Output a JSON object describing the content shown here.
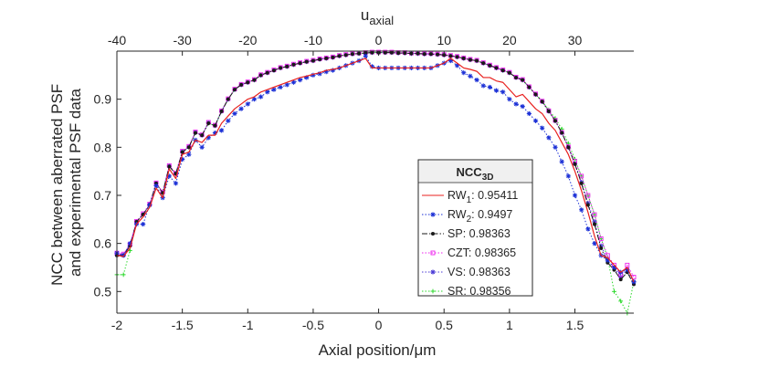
{
  "chart_data": {
    "type": "line",
    "ylabel_line1": "NCC between aberrated PSF",
    "ylabel_line2": "and experimental PSF data",
    "xlabel": "Axial position/μm",
    "top_xlabel_main": "u",
    "top_xlabel_sub": "axial",
    "xlim": [
      -2,
      1.95
    ],
    "ylim": [
      0.455,
      1.0
    ],
    "x_ticks": [
      -2,
      -1.5,
      -1,
      -0.5,
      0,
      0.5,
      1,
      1.5
    ],
    "x_tick_labels": [
      "-2",
      "-1.5",
      "-1",
      "-0.5",
      "0",
      "0.5",
      "1",
      "1.5"
    ],
    "top_x_ticks": [
      -40,
      -30,
      -20,
      -10,
      0,
      10,
      20,
      30
    ],
    "top_x_tick_labels": [
      "-40",
      "-30",
      "-20",
      "-10",
      "0",
      "10",
      "20",
      "30"
    ],
    "y_ticks": [
      0.5,
      0.6,
      0.7,
      0.8,
      0.9
    ],
    "y_tick_labels": [
      "0.5",
      "0.6",
      "0.7",
      "0.8",
      "0.9"
    ],
    "legend": {
      "title_main": "NCC",
      "title_sub": "3D",
      "placement": "center-right"
    },
    "series": [
      {
        "name": "RW1",
        "name_main": "RW",
        "name_sub": "1",
        "value_label": ": 0.95411",
        "color": "#e8211f",
        "style": "solid",
        "marker": "none",
        "x": [
          -2.0,
          -1.95,
          -1.9,
          -1.85,
          -1.8,
          -1.75,
          -1.7,
          -1.65,
          -1.6,
          -1.55,
          -1.5,
          -1.45,
          -1.4,
          -1.35,
          -1.3,
          -1.25,
          -1.2,
          -1.15,
          -1.1,
          -1.05,
          -1.0,
          -0.95,
          -0.9,
          -0.85,
          -0.8,
          -0.75,
          -0.7,
          -0.65,
          -0.6,
          -0.55,
          -0.5,
          -0.45,
          -0.4,
          -0.35,
          -0.3,
          -0.25,
          -0.2,
          -0.15,
          -0.1,
          -0.05,
          0.0,
          0.05,
          0.1,
          0.15,
          0.2,
          0.25,
          0.3,
          0.35,
          0.4,
          0.45,
          0.5,
          0.55,
          0.6,
          0.65,
          0.7,
          0.75,
          0.8,
          0.85,
          0.9,
          0.95,
          1.0,
          1.05,
          1.1,
          1.15,
          1.2,
          1.25,
          1.3,
          1.35,
          1.4,
          1.45,
          1.5,
          1.55,
          1.6,
          1.65,
          1.7,
          1.75,
          1.8,
          1.85,
          1.9,
          1.95
        ],
        "values": [
          0.575,
          0.573,
          0.59,
          0.64,
          0.655,
          0.675,
          0.715,
          0.695,
          0.755,
          0.735,
          0.785,
          0.79,
          0.815,
          0.81,
          0.825,
          0.825,
          0.85,
          0.865,
          0.88,
          0.89,
          0.9,
          0.905,
          0.915,
          0.92,
          0.925,
          0.93,
          0.935,
          0.94,
          0.945,
          0.948,
          0.952,
          0.955,
          0.96,
          0.962,
          0.965,
          0.97,
          0.975,
          0.98,
          0.985,
          0.965,
          0.965,
          0.965,
          0.965,
          0.965,
          0.965,
          0.965,
          0.965,
          0.965,
          0.965,
          0.97,
          0.975,
          0.985,
          0.975,
          0.965,
          0.962,
          0.958,
          0.945,
          0.945,
          0.938,
          0.935,
          0.92,
          0.905,
          0.91,
          0.895,
          0.88,
          0.87,
          0.85,
          0.835,
          0.81,
          0.785,
          0.75,
          0.71,
          0.665,
          0.615,
          0.575,
          0.57,
          0.555,
          0.54,
          0.55,
          0.52
        ]
      },
      {
        "name": "RW2",
        "name_main": "RW",
        "name_sub": "2",
        "value_label": ": 0.9497",
        "color": "#1a2fd6",
        "style": "dotted",
        "marker": "star",
        "x": [
          -2.0,
          -1.95,
          -1.9,
          -1.85,
          -1.8,
          -1.75,
          -1.7,
          -1.65,
          -1.6,
          -1.55,
          -1.5,
          -1.45,
          -1.4,
          -1.35,
          -1.3,
          -1.25,
          -1.2,
          -1.15,
          -1.1,
          -1.05,
          -1.0,
          -0.95,
          -0.9,
          -0.85,
          -0.8,
          -0.75,
          -0.7,
          -0.65,
          -0.6,
          -0.55,
          -0.5,
          -0.45,
          -0.4,
          -0.35,
          -0.3,
          -0.25,
          -0.2,
          -0.15,
          -0.1,
          -0.05,
          0.0,
          0.05,
          0.1,
          0.15,
          0.2,
          0.25,
          0.3,
          0.35,
          0.4,
          0.45,
          0.5,
          0.55,
          0.6,
          0.65,
          0.7,
          0.75,
          0.8,
          0.85,
          0.9,
          0.95,
          1.0,
          1.05,
          1.1,
          1.15,
          1.2,
          1.25,
          1.3,
          1.35,
          1.4,
          1.45,
          1.5,
          1.55,
          1.6,
          1.65,
          1.7,
          1.75,
          1.8,
          1.85,
          1.9,
          1.95
        ],
        "values": [
          0.58,
          0.575,
          0.6,
          0.64,
          0.64,
          0.68,
          0.72,
          0.695,
          0.74,
          0.725,
          0.775,
          0.785,
          0.815,
          0.8,
          0.82,
          0.83,
          0.835,
          0.855,
          0.87,
          0.88,
          0.89,
          0.9,
          0.905,
          0.915,
          0.92,
          0.925,
          0.93,
          0.935,
          0.94,
          0.945,
          0.95,
          0.953,
          0.957,
          0.96,
          0.965,
          0.97,
          0.975,
          0.98,
          0.99,
          0.968,
          0.965,
          0.965,
          0.965,
          0.965,
          0.965,
          0.965,
          0.965,
          0.965,
          0.965,
          0.97,
          0.975,
          0.98,
          0.97,
          0.955,
          0.948,
          0.94,
          0.928,
          0.925,
          0.918,
          0.915,
          0.9,
          0.89,
          0.885,
          0.87,
          0.855,
          0.84,
          0.82,
          0.8,
          0.77,
          0.74,
          0.7,
          0.67,
          0.63,
          0.6,
          0.575,
          0.565,
          0.55,
          0.54,
          0.545,
          0.52
        ]
      },
      {
        "name": "SP",
        "name_main": "SP",
        "name_sub": "",
        "value_label": ": 0.98363",
        "color": "#1a1a1a",
        "style": "dashdot",
        "marker": "dot",
        "x": [
          -2.0,
          -1.95,
          -1.9,
          -1.85,
          -1.8,
          -1.75,
          -1.7,
          -1.65,
          -1.6,
          -1.55,
          -1.5,
          -1.45,
          -1.4,
          -1.35,
          -1.3,
          -1.25,
          -1.2,
          -1.15,
          -1.1,
          -1.05,
          -1.0,
          -0.95,
          -0.9,
          -0.85,
          -0.8,
          -0.75,
          -0.7,
          -0.65,
          -0.6,
          -0.55,
          -0.5,
          -0.45,
          -0.4,
          -0.35,
          -0.3,
          -0.25,
          -0.2,
          -0.15,
          -0.1,
          -0.05,
          0.0,
          0.05,
          0.1,
          0.15,
          0.2,
          0.25,
          0.3,
          0.35,
          0.4,
          0.45,
          0.5,
          0.55,
          0.6,
          0.65,
          0.7,
          0.75,
          0.8,
          0.85,
          0.9,
          0.95,
          1.0,
          1.05,
          1.1,
          1.15,
          1.2,
          1.25,
          1.3,
          1.35,
          1.4,
          1.45,
          1.5,
          1.55,
          1.6,
          1.65,
          1.7,
          1.75,
          1.8,
          1.85,
          1.9,
          1.95
        ],
        "values": [
          0.575,
          0.575,
          0.595,
          0.645,
          0.66,
          0.68,
          0.725,
          0.705,
          0.76,
          0.745,
          0.79,
          0.8,
          0.83,
          0.825,
          0.85,
          0.845,
          0.875,
          0.9,
          0.92,
          0.93,
          0.935,
          0.94,
          0.95,
          0.955,
          0.96,
          0.965,
          0.968,
          0.972,
          0.975,
          0.978,
          0.98,
          0.983,
          0.985,
          0.987,
          0.99,
          0.992,
          0.994,
          0.995,
          0.996,
          0.997,
          0.997,
          0.997,
          0.997,
          0.996,
          0.996,
          0.995,
          0.995,
          0.994,
          0.994,
          0.993,
          0.992,
          0.99,
          0.988,
          0.985,
          0.982,
          0.98,
          0.975,
          0.97,
          0.965,
          0.96,
          0.955,
          0.945,
          0.94,
          0.925,
          0.91,
          0.895,
          0.875,
          0.855,
          0.83,
          0.8,
          0.765,
          0.725,
          0.68,
          0.64,
          0.59,
          0.56,
          0.545,
          0.525,
          0.54,
          0.515
        ]
      },
      {
        "name": "CZT",
        "name_main": "CZT",
        "name_sub": "",
        "value_label": ": 0.98365",
        "color": "#ee22ee",
        "style": "dotted",
        "marker": "square",
        "x": [
          -2.0,
          -1.95,
          -1.9,
          -1.85,
          -1.8,
          -1.75,
          -1.7,
          -1.65,
          -1.6,
          -1.55,
          -1.5,
          -1.45,
          -1.4,
          -1.35,
          -1.3,
          -1.25,
          -1.2,
          -1.15,
          -1.1,
          -1.05,
          -1.0,
          -0.95,
          -0.9,
          -0.85,
          -0.8,
          -0.75,
          -0.7,
          -0.65,
          -0.6,
          -0.55,
          -0.5,
          -0.45,
          -0.4,
          -0.35,
          -0.3,
          -0.25,
          -0.2,
          -0.15,
          -0.1,
          -0.05,
          0.0,
          0.05,
          0.1,
          0.15,
          0.2,
          0.25,
          0.3,
          0.35,
          0.4,
          0.45,
          0.5,
          0.55,
          0.6,
          0.65,
          0.7,
          0.75,
          0.8,
          0.85,
          0.9,
          0.95,
          1.0,
          1.05,
          1.1,
          1.15,
          1.2,
          1.25,
          1.3,
          1.35,
          1.4,
          1.45,
          1.5,
          1.55,
          1.6,
          1.65,
          1.7,
          1.75,
          1.8,
          1.85,
          1.9,
          1.95
        ],
        "values": [
          0.58,
          0.578,
          0.598,
          0.646,
          0.662,
          0.682,
          0.726,
          0.707,
          0.762,
          0.746,
          0.792,
          0.802,
          0.832,
          0.826,
          0.852,
          0.846,
          0.876,
          0.901,
          0.921,
          0.931,
          0.936,
          0.941,
          0.951,
          0.956,
          0.961,
          0.966,
          0.969,
          0.973,
          0.976,
          0.979,
          0.981,
          0.984,
          0.986,
          0.988,
          0.991,
          0.993,
          0.995,
          0.996,
          0.997,
          0.998,
          0.998,
          0.998,
          0.998,
          0.997,
          0.997,
          0.996,
          0.996,
          0.995,
          0.995,
          0.994,
          0.993,
          0.991,
          0.989,
          0.986,
          0.983,
          0.981,
          0.976,
          0.971,
          0.966,
          0.961,
          0.956,
          0.946,
          0.941,
          0.926,
          0.911,
          0.896,
          0.876,
          0.856,
          0.831,
          0.801,
          0.771,
          0.74,
          0.7,
          0.66,
          0.61,
          0.575,
          0.555,
          0.535,
          0.555,
          0.53
        ]
      },
      {
        "name": "VS",
        "name_main": "VS",
        "name_sub": "",
        "value_label": ": 0.98363",
        "color": "#4b3bd6",
        "style": "dotted",
        "marker": "star",
        "x": [
          -2.0,
          -1.95,
          -1.9,
          -1.85,
          -1.8,
          -1.75,
          -1.7,
          -1.65,
          -1.6,
          -1.55,
          -1.5,
          -1.45,
          -1.4,
          -1.35,
          -1.3,
          -1.25,
          -1.2,
          -1.15,
          -1.1,
          -1.05,
          -1.0,
          -0.95,
          -0.9,
          -0.85,
          -0.8,
          -0.75,
          -0.7,
          -0.65,
          -0.6,
          -0.55,
          -0.5,
          -0.45,
          -0.4,
          -0.35,
          -0.3,
          -0.25,
          -0.2,
          -0.15,
          -0.1,
          -0.05,
          0.0,
          0.05,
          0.1,
          0.15,
          0.2,
          0.25,
          0.3,
          0.35,
          0.4,
          0.45,
          0.5,
          0.55,
          0.6,
          0.65,
          0.7,
          0.75,
          0.8,
          0.85,
          0.9,
          0.95,
          1.0,
          1.05,
          1.1,
          1.15,
          1.2,
          1.25,
          1.3,
          1.35,
          1.4,
          1.45,
          1.5,
          1.55,
          1.6,
          1.65,
          1.7,
          1.75,
          1.8,
          1.85,
          1.9,
          1.95
        ],
        "values": [
          0.576,
          0.576,
          0.596,
          0.645,
          0.66,
          0.681,
          0.725,
          0.706,
          0.761,
          0.745,
          0.791,
          0.801,
          0.831,
          0.825,
          0.851,
          0.845,
          0.875,
          0.9,
          0.92,
          0.93,
          0.935,
          0.94,
          0.95,
          0.955,
          0.96,
          0.965,
          0.968,
          0.972,
          0.975,
          0.978,
          0.98,
          0.983,
          0.985,
          0.987,
          0.99,
          0.992,
          0.994,
          0.995,
          0.996,
          0.997,
          0.997,
          0.997,
          0.997,
          0.996,
          0.996,
          0.995,
          0.995,
          0.994,
          0.994,
          0.993,
          0.992,
          0.99,
          0.988,
          0.985,
          0.982,
          0.98,
          0.975,
          0.97,
          0.965,
          0.96,
          0.955,
          0.945,
          0.94,
          0.925,
          0.91,
          0.895,
          0.875,
          0.855,
          0.83,
          0.8,
          0.766,
          0.727,
          0.684,
          0.645,
          0.595,
          0.565,
          0.55,
          0.53,
          0.545,
          0.52
        ]
      },
      {
        "name": "SR",
        "name_main": "SR",
        "name_sub": "",
        "value_label": ": 0.98356",
        "color": "#2bd92b",
        "style": "dotted",
        "marker": "plus",
        "x": [
          -2.0,
          -1.95,
          -1.9,
          -1.85,
          -1.8,
          -1.75,
          -1.7,
          -1.65,
          -1.6,
          -1.55,
          -1.5,
          -1.45,
          -1.4,
          -1.35,
          -1.3,
          -1.25,
          -1.2,
          -1.15,
          -1.1,
          -1.05,
          -1.0,
          -0.95,
          -0.9,
          -0.85,
          -0.8,
          -0.75,
          -0.7,
          -0.65,
          -0.6,
          -0.55,
          -0.5,
          -0.45,
          -0.4,
          -0.35,
          -0.3,
          -0.25,
          -0.2,
          -0.15,
          -0.1,
          -0.05,
          0.0,
          0.05,
          0.1,
          0.15,
          0.2,
          0.25,
          0.3,
          0.35,
          0.4,
          0.45,
          0.5,
          0.55,
          0.6,
          0.65,
          0.7,
          0.75,
          0.8,
          0.85,
          0.9,
          0.95,
          1.0,
          1.05,
          1.1,
          1.15,
          1.2,
          1.25,
          1.3,
          1.35,
          1.4,
          1.45,
          1.5,
          1.55,
          1.6,
          1.65,
          1.7,
          1.75,
          1.8,
          1.85,
          1.9,
          1.95
        ],
        "values": [
          0.535,
          0.535,
          0.585,
          0.645,
          0.66,
          0.68,
          0.725,
          0.705,
          0.76,
          0.745,
          0.79,
          0.8,
          0.83,
          0.825,
          0.85,
          0.845,
          0.875,
          0.9,
          0.92,
          0.93,
          0.935,
          0.94,
          0.95,
          0.955,
          0.96,
          0.965,
          0.968,
          0.972,
          0.975,
          0.978,
          0.98,
          0.983,
          0.985,
          0.987,
          0.99,
          0.992,
          0.994,
          0.995,
          0.996,
          0.997,
          0.997,
          0.997,
          0.997,
          0.996,
          0.996,
          0.995,
          0.995,
          0.994,
          0.994,
          0.993,
          0.992,
          0.99,
          0.988,
          0.985,
          0.982,
          0.98,
          0.975,
          0.97,
          0.965,
          0.96,
          0.955,
          0.945,
          0.94,
          0.925,
          0.91,
          0.895,
          0.878,
          0.86,
          0.838,
          0.808,
          0.775,
          0.74,
          0.7,
          0.66,
          0.61,
          0.57,
          0.5,
          0.48,
          0.455,
          0.52
        ]
      }
    ]
  }
}
